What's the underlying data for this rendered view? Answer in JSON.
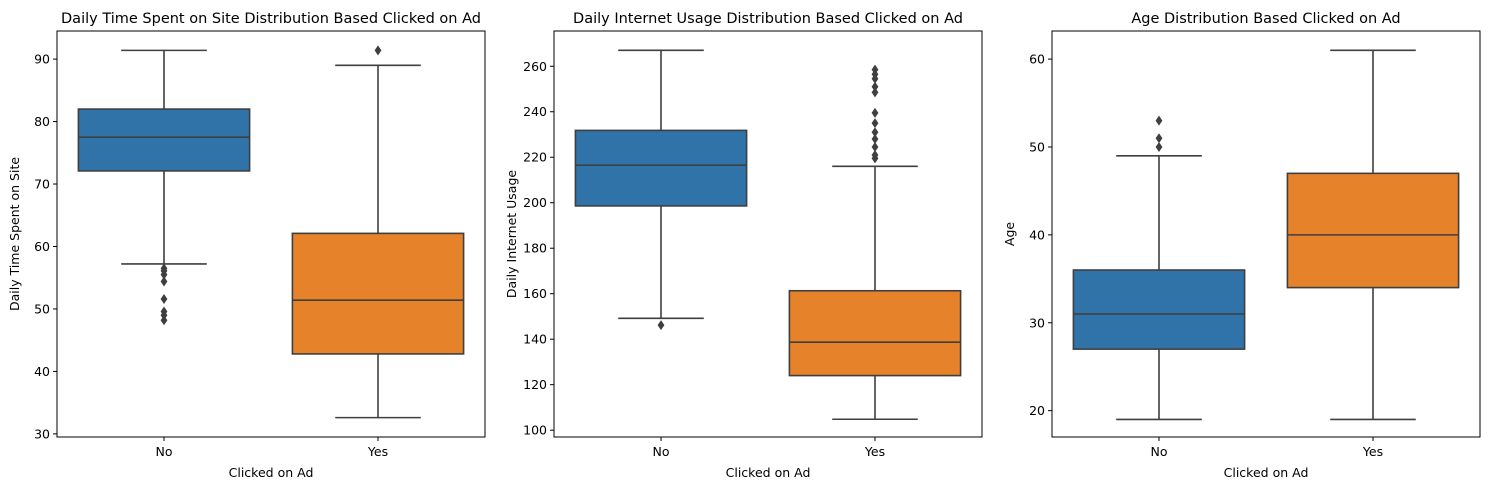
{
  "chart_data": [
    {
      "type": "box",
      "title": "Daily Time Spent on Site Distribution Based Clicked on Ad",
      "xlabel": "Clicked on Ad",
      "ylabel": "Daily Time Spent on Site",
      "categories": [
        "No",
        "Yes"
      ],
      "ylim": [
        29.5,
        94.5
      ],
      "yticks": [
        30,
        40,
        50,
        60,
        70,
        80,
        90
      ],
      "boxes": [
        {
          "category": "No",
          "color": "#2f73a8",
          "whisker_low": 57.2,
          "q1": 72.1,
          "median": 77.5,
          "q3": 82.0,
          "whisker_high": 91.4,
          "outliers": [
            48.2,
            49.0,
            49.6,
            51.6,
            54.4,
            55.5,
            56.1,
            56.5
          ]
        },
        {
          "category": "Yes",
          "color": "#e5822a",
          "whisker_low": 32.6,
          "q1": 42.8,
          "median": 51.4,
          "q3": 62.1,
          "whisker_high": 89.0,
          "outliers": [
            91.4
          ]
        }
      ],
      "grid": false
    },
    {
      "type": "box",
      "title": "Daily Internet Usage Distribution Based Clicked on Ad",
      "xlabel": "Clicked on Ad",
      "ylabel": "Daily Internet Usage",
      "categories": [
        "No",
        "Yes"
      ],
      "ylim": [
        97,
        275.5
      ],
      "yticks": [
        100,
        120,
        140,
        160,
        180,
        200,
        220,
        240,
        260
      ],
      "boxes": [
        {
          "category": "No",
          "color": "#2f73a8",
          "whisker_low": 149.2,
          "q1": 198.6,
          "median": 216.5,
          "q3": 231.8,
          "whisker_high": 267.0,
          "outliers": [
            146.2
          ]
        },
        {
          "category": "Yes",
          "color": "#e5822a",
          "whisker_low": 104.8,
          "q1": 124.0,
          "median": 138.7,
          "q3": 161.3,
          "whisker_high": 216.0,
          "outliers": [
            219.5,
            221.0,
            224.5,
            228.0,
            231.0,
            235.0,
            239.5,
            248.5,
            251.0,
            254.5,
            256.5,
            258.5
          ]
        }
      ],
      "grid": false
    },
    {
      "type": "box",
      "title": "Age Distribution Based Clicked on Ad",
      "xlabel": "Clicked on Ad",
      "ylabel": "Age",
      "categories": [
        "No",
        "Yes"
      ],
      "ylim": [
        17,
        63.2
      ],
      "yticks": [
        20,
        30,
        40,
        50,
        60
      ],
      "boxes": [
        {
          "category": "No",
          "color": "#2f73a8",
          "whisker_low": 19,
          "q1": 27,
          "median": 31,
          "q3": 36,
          "whisker_high": 49,
          "outliers": [
            50,
            51,
            53
          ]
        },
        {
          "category": "Yes",
          "color": "#e5822a",
          "whisker_low": 19,
          "q1": 34,
          "median": 40,
          "q3": 47,
          "whisker_high": 61,
          "outliers": []
        }
      ],
      "grid": false
    }
  ]
}
